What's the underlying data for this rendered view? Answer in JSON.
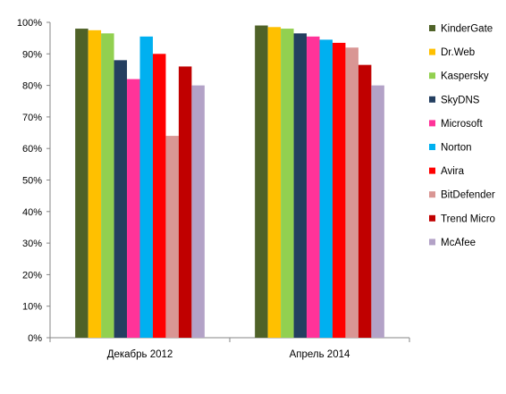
{
  "chart_data": {
    "type": "bar",
    "categories": [
      "Декабрь 2012",
      "Апрель 2014"
    ],
    "ylim": [
      0,
      100
    ],
    "yticks": [
      0,
      10,
      20,
      30,
      40,
      50,
      60,
      70,
      80,
      90,
      100
    ],
    "ytick_suffix": "%",
    "grid": false,
    "legend_position": "right",
    "series": [
      {
        "name": "KinderGate",
        "color": "#4F6228",
        "values": [
          98,
          99
        ]
      },
      {
        "name": "Dr.Web",
        "color": "#FFC000",
        "values": [
          97.5,
          98.5
        ]
      },
      {
        "name": "Kaspersky",
        "color": "#92D050",
        "values": [
          96.5,
          98
        ]
      },
      {
        "name": "SkyDNS",
        "color": "#243F60",
        "values": [
          88,
          96.5
        ]
      },
      {
        "name": "Microsoft",
        "color": "#FF3399",
        "values": [
          82,
          95.5
        ]
      },
      {
        "name": "Norton",
        "color": "#00B0F0",
        "values": [
          95.5,
          94.5
        ]
      },
      {
        "name": "Avira",
        "color": "#FF0000",
        "values": [
          90,
          93.5
        ]
      },
      {
        "name": "BitDefender",
        "color": "#D99694",
        "values": [
          64,
          92
        ]
      },
      {
        "name": "Trend Micro",
        "color": "#C00000",
        "values": [
          86,
          86.5
        ]
      },
      {
        "name": "McAfee",
        "color": "#B3A2C7",
        "values": [
          80,
          80
        ]
      }
    ]
  }
}
